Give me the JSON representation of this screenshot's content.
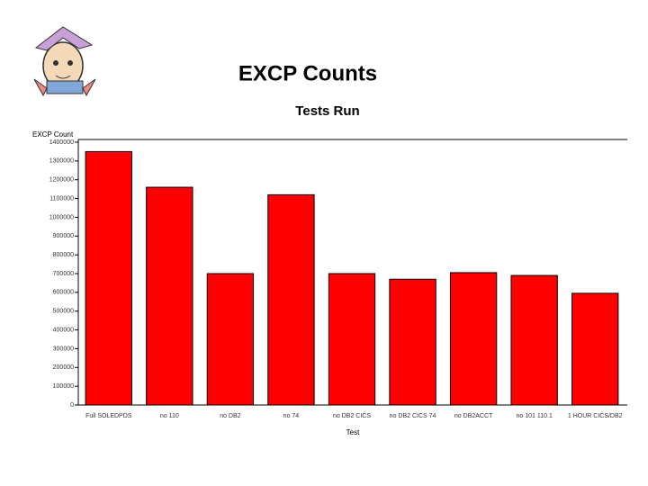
{
  "slide_title": "EXCP Counts",
  "chart_data": {
    "type": "bar",
    "title": "Tests Run",
    "ylabel": "EXCP Count",
    "xlabel": "Test",
    "categories": [
      "Full SOLEDPDS",
      "no 110",
      "no DB2",
      "no 74",
      "no DB2 CICS",
      "no DB2 CICS 74",
      "no DB2ACCT",
      "no 101 110.1",
      "1 HOUR CICS/DB2"
    ],
    "values": [
      1350000,
      1160000,
      700000,
      1120000,
      700000,
      670000,
      705000,
      690000,
      595000
    ],
    "color": "#ff0000",
    "ylim": [
      0,
      1400000
    ],
    "yticks": [
      0,
      100000,
      200000,
      300000,
      400000,
      500000,
      600000,
      700000,
      800000,
      900000,
      1000000,
      1100000,
      1200000,
      1300000,
      1400000
    ]
  }
}
